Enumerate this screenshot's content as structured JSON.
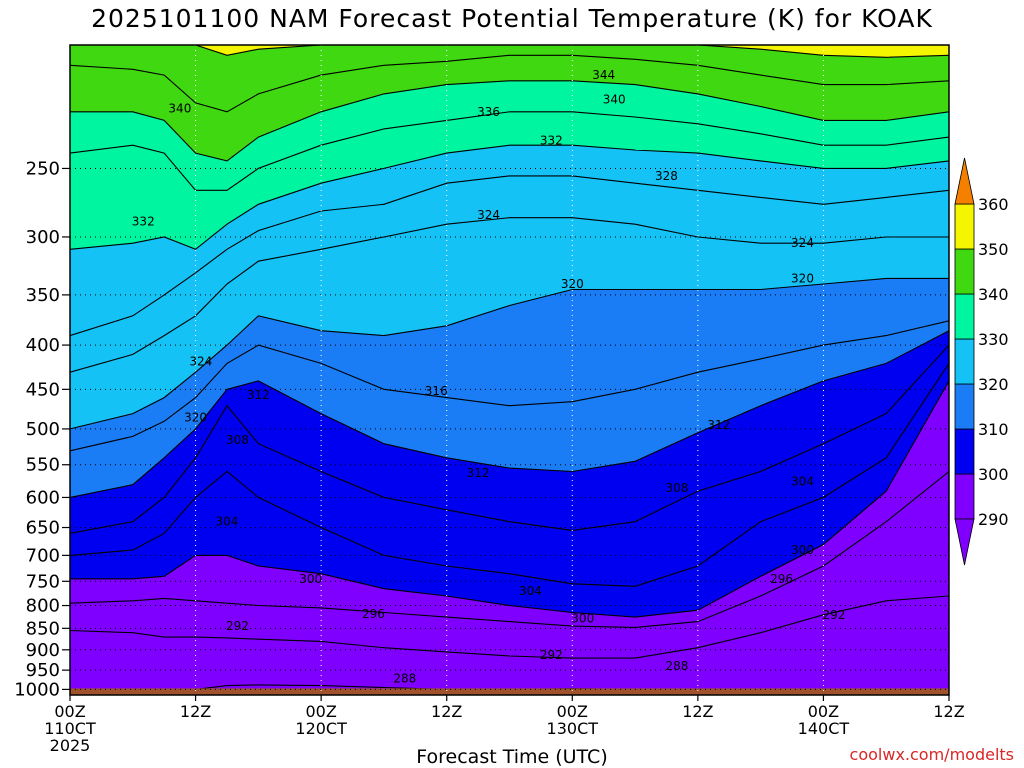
{
  "title": "2025101100 NAM Forecast Potential Temperature (K) for KOAK",
  "credit": "coolwx.com/modelts",
  "chart_data": {
    "type": "contour-fill",
    "xlabel": "Forecast Time (UTC)",
    "ylabel": "",
    "y_axis": {
      "scale": "log",
      "inverted": true,
      "ylim": [
        1015,
        180
      ]
    },
    "yticks": [
      250,
      300,
      350,
      400,
      450,
      500,
      550,
      600,
      650,
      700,
      750,
      800,
      850,
      900,
      950,
      1000
    ],
    "xticks": [
      {
        "hour": 0,
        "labels": [
          "00Z",
          "110CT",
          "2025"
        ]
      },
      {
        "hour": 12,
        "labels": [
          "12Z"
        ]
      },
      {
        "hour": 24,
        "labels": [
          "00Z",
          "120CT"
        ]
      },
      {
        "hour": 36,
        "labels": [
          "12Z"
        ]
      },
      {
        "hour": 48,
        "labels": [
          "00Z",
          "130CT"
        ]
      },
      {
        "hour": 60,
        "labels": [
          "12Z"
        ]
      },
      {
        "hour": 72,
        "labels": [
          "00Z",
          "140CT"
        ]
      },
      {
        "hour": 84,
        "labels": [
          "12Z"
        ]
      }
    ],
    "xlim": [
      0,
      84
    ],
    "grid": true,
    "colorbar": {
      "levels": [
        290,
        300,
        310,
        320,
        330,
        340,
        350,
        360
      ],
      "colors": [
        "#7f00ff",
        "#0000f0",
        "#1a7df5",
        "#14c2f5",
        "#00f5a0",
        "#40d810",
        "#f5f500",
        "#f5a000"
      ],
      "extend_low_color": "#7f00ff",
      "extend_high_color": "#f58000"
    },
    "ground_pressure": 1000,
    "ground_color": "#a0522d",
    "times": [
      0,
      6,
      9,
      12,
      15,
      18,
      24,
      30,
      36,
      42,
      48,
      54,
      60,
      66,
      72,
      78,
      84
    ],
    "isentropes": [
      {
        "theta": 290,
        "p": [
          1000,
          1000,
          1000,
          1000,
          990,
          988,
          990,
          995,
          1000,
          1000,
          998,
          1000,
          1000,
          1000,
          1000,
          1000,
          1000
        ]
      },
      {
        "theta": 292,
        "p": [
          855,
          860,
          870,
          870,
          872,
          875,
          880,
          895,
          905,
          915,
          920,
          920,
          895,
          860,
          820,
          790,
          780
        ]
      },
      {
        "theta": 296,
        "p": [
          795,
          790,
          785,
          790,
          795,
          800,
          805,
          815,
          825,
          835,
          845,
          848,
          835,
          780,
          720,
          640,
          560
        ]
      },
      {
        "theta": 300,
        "p": [
          745,
          745,
          740,
          700,
          700,
          720,
          735,
          765,
          780,
          800,
          815,
          825,
          810,
          740,
          680,
          590,
          440
        ]
      },
      {
        "theta": 304,
        "p": [
          700,
          690,
          660,
          600,
          560,
          600,
          650,
          700,
          720,
          735,
          755,
          760,
          720,
          640,
          600,
          540,
          420
        ]
      },
      {
        "theta": 308,
        "p": [
          660,
          640,
          600,
          540,
          470,
          520,
          560,
          600,
          620,
          640,
          655,
          640,
          590,
          560,
          520,
          480,
          400
        ]
      },
      {
        "theta": 312,
        "p": [
          600,
          580,
          540,
          500,
          450,
          440,
          480,
          520,
          540,
          555,
          560,
          545,
          505,
          470,
          440,
          420,
          385
        ]
      },
      {
        "theta": 316,
        "p": [
          530,
          510,
          490,
          460,
          420,
          400,
          420,
          450,
          460,
          470,
          465,
          450,
          430,
          415,
          400,
          390,
          375
        ]
      },
      {
        "theta": 320,
        "p": [
          500,
          480,
          460,
          430,
          400,
          370,
          385,
          390,
          380,
          360,
          345,
          345,
          345,
          345,
          340,
          335,
          335
        ]
      },
      {
        "theta": 324,
        "p": [
          430,
          410,
          390,
          370,
          340,
          320,
          310,
          300,
          290,
          285,
          285,
          290,
          300,
          305,
          305,
          300,
          300
        ]
      },
      {
        "theta": 328,
        "p": [
          390,
          370,
          350,
          330,
          310,
          295,
          280,
          275,
          260,
          255,
          255,
          260,
          265,
          270,
          275,
          270,
          265
        ]
      },
      {
        "theta": 332,
        "p": [
          310,
          305,
          300,
          310,
          290,
          275,
          260,
          250,
          240,
          235,
          235,
          238,
          240,
          245,
          250,
          250,
          245
        ]
      },
      {
        "theta": 336,
        "p": [
          240,
          235,
          240,
          265,
          265,
          250,
          235,
          225,
          220,
          215,
          215,
          218,
          222,
          228,
          235,
          235,
          230
        ]
      },
      {
        "theta": 340,
        "p": [
          215,
          215,
          220,
          240,
          245,
          230,
          215,
          205,
          200,
          198,
          198,
          200,
          205,
          212,
          220,
          220,
          215
        ]
      },
      {
        "theta": 344,
        "p": [
          190,
          192,
          195,
          210,
          215,
          205,
          195,
          190,
          188,
          185,
          185,
          187,
          190,
          195,
          200,
          200,
          198
        ]
      },
      {
        "theta": 350,
        "p": [
          180,
          180,
          180,
          180,
          185,
          182,
          180,
          180,
          180,
          180,
          180,
          180,
          180,
          182,
          185,
          186,
          185
        ]
      }
    ],
    "contour_labels": [
      {
        "text": "340",
        "hour": 10.5,
        "p": 213
      },
      {
        "text": "332",
        "hour": 7,
        "p": 288
      },
      {
        "text": "336",
        "hour": 40,
        "p": 215
      },
      {
        "text": "332",
        "hour": 46,
        "p": 232
      },
      {
        "text": "344",
        "hour": 51,
        "p": 195
      },
      {
        "text": "340",
        "hour": 52,
        "p": 208
      },
      {
        "text": "328",
        "hour": 57,
        "p": 255
      },
      {
        "text": "324",
        "hour": 40,
        "p": 283
      },
      {
        "text": "324",
        "hour": 70,
        "p": 305
      },
      {
        "text": "320",
        "hour": 70,
        "p": 335
      },
      {
        "text": "320",
        "hour": 48,
        "p": 340
      },
      {
        "text": "324",
        "hour": 12.5,
        "p": 418
      },
      {
        "text": "312",
        "hour": 18,
        "p": 457
      },
      {
        "text": "316",
        "hour": 35,
        "p": 452
      },
      {
        "text": "320",
        "hour": 12,
        "p": 485
      },
      {
        "text": "308",
        "hour": 16,
        "p": 515
      },
      {
        "text": "312",
        "hour": 39,
        "p": 562
      },
      {
        "text": "312",
        "hour": 62,
        "p": 495
      },
      {
        "text": "308",
        "hour": 58,
        "p": 585
      },
      {
        "text": "304",
        "hour": 70,
        "p": 575
      },
      {
        "text": "304",
        "hour": 15,
        "p": 640
      },
      {
        "text": "300",
        "hour": 70,
        "p": 690
      },
      {
        "text": "300",
        "hour": 23,
        "p": 745
      },
      {
        "text": "296",
        "hour": 68,
        "p": 745
      },
      {
        "text": "304",
        "hour": 44,
        "p": 770
      },
      {
        "text": "296",
        "hour": 29,
        "p": 818
      },
      {
        "text": "292",
        "hour": 16,
        "p": 845
      },
      {
        "text": "300",
        "hour": 49,
        "p": 828
      },
      {
        "text": "292",
        "hour": 73,
        "p": 820
      },
      {
        "text": "292",
        "hour": 46,
        "p": 912
      },
      {
        "text": "288",
        "hour": 58,
        "p": 940
      },
      {
        "text": "288",
        "hour": 32,
        "p": 972
      }
    ]
  }
}
